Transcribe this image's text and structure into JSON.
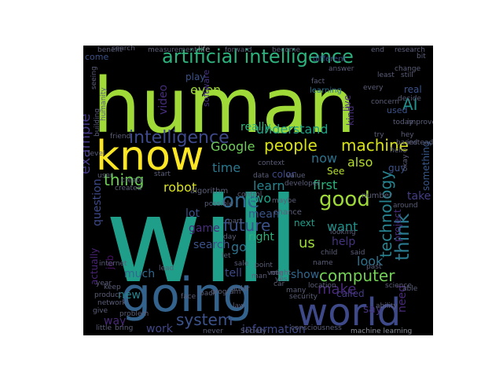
{
  "wordcloud": {
    "background": "#000000",
    "colormap": "viridis",
    "words": [
      {
        "text": "will",
        "color": "#1f9e89"
      },
      {
        "text": "human",
        "color": "#a0da39"
      },
      {
        "text": "going",
        "color": "#33638d"
      },
      {
        "text": "world",
        "color": "#3e4989"
      },
      {
        "text": "know",
        "color": "#fde725"
      },
      {
        "text": "artificial intelligence",
        "color": "#2db27d"
      },
      {
        "text": "intelligence",
        "color": "#3e4989"
      },
      {
        "text": "people",
        "color": "#d8e219"
      },
      {
        "text": "machine",
        "color": "#d8e219"
      },
      {
        "text": "one",
        "color": "#31688e"
      },
      {
        "text": "good",
        "color": "#a0da39"
      },
      {
        "text": "computer",
        "color": "#73d056"
      },
      {
        "text": "think",
        "color": "#2a788e"
      },
      {
        "text": "technology",
        "color": "#26828e"
      },
      {
        "text": "future",
        "color": "#3b528b"
      },
      {
        "text": "system",
        "color": "#3b528b"
      },
      {
        "text": "Google",
        "color": "#6ece58"
      },
      {
        "text": "thing",
        "color": "#6ece58"
      },
      {
        "text": "time",
        "color": "#2a788e"
      },
      {
        "text": "really",
        "color": "#35b779"
      },
      {
        "text": "understand",
        "color": "#1fa187"
      },
      {
        "text": "now",
        "color": "#2c728e"
      },
      {
        "text": "also",
        "color": "#b5de2b"
      },
      {
        "text": "robot",
        "color": "#d8e219"
      },
      {
        "text": "example",
        "color": "#443a83"
      },
      {
        "text": "video",
        "color": "#472d7b"
      },
      {
        "text": "AI",
        "color": "#21918c"
      },
      {
        "text": "even",
        "color": "#a0da39"
      },
      {
        "text": "make",
        "color": "#482878"
      },
      {
        "text": "learn",
        "color": "#26828e"
      },
      {
        "text": "two",
        "color": "#1fa187"
      },
      {
        "text": "first",
        "color": "#2db27d"
      },
      {
        "text": "look",
        "color": "#2c728e"
      },
      {
        "text": "want",
        "color": "#21918c"
      },
      {
        "text": "us",
        "color": "#a0da39"
      },
      {
        "text": "go",
        "color": "#2c728e"
      },
      {
        "text": "right",
        "color": "#2db27d"
      },
      {
        "text": "mean",
        "color": "#39568c"
      },
      {
        "text": "lot",
        "color": "#3b528b"
      },
      {
        "text": "game",
        "color": "#472d7b"
      },
      {
        "text": "search",
        "color": "#3b528b"
      },
      {
        "text": "help",
        "color": "#46337f"
      },
      {
        "text": "tell",
        "color": "#3e4989"
      },
      {
        "text": "show",
        "color": "#31688e"
      },
      {
        "text": "much",
        "color": "#31688e"
      },
      {
        "text": "new",
        "color": "#25848e"
      },
      {
        "text": "way",
        "color": "#482878"
      },
      {
        "text": "work",
        "color": "#404688"
      },
      {
        "text": "information",
        "color": "#3e4989"
      },
      {
        "text": "say",
        "color": "#46337f"
      },
      {
        "text": "called",
        "color": "#443a83"
      },
      {
        "text": "need",
        "color": "#482878"
      },
      {
        "text": "take",
        "color": "#433e85"
      },
      {
        "text": "something",
        "color": "#38588c"
      },
      {
        "text": "guy",
        "color": "#3b528b"
      },
      {
        "text": "project",
        "color": "#472d7b"
      },
      {
        "text": "question",
        "color": "#3e4989"
      },
      {
        "text": "actually",
        "color": "#482475"
      },
      {
        "text": "job",
        "color": "#471063"
      },
      {
        "text": "color",
        "color": "#3e4989"
      },
      {
        "text": "See",
        "color": "#b5de2b"
      },
      {
        "text": "next",
        "color": "#1f9e89"
      },
      {
        "text": "software",
        "color": "#46337f"
      },
      {
        "text": "learning",
        "color": "#2c728e"
      },
      {
        "text": "kind",
        "color": "#472d7b"
      },
      {
        "text": "live",
        "color": "#472d7b"
      },
      {
        "text": "real",
        "color": "#3b528b"
      },
      {
        "text": "used",
        "color": "#3b528b"
      },
      {
        "text": "come",
        "color": "#3b528b"
      },
      {
        "text": "play",
        "color": "#3b528b"
      },
      {
        "text": "different",
        "color": "#3b528b"
      },
      {
        "text": "benefit",
        "color": "#5b5f7a"
      },
      {
        "text": "measurement",
        "color": "#5b5f7a"
      },
      {
        "text": "life",
        "color": "#8a8f9a"
      },
      {
        "text": "forward",
        "color": "#5b5f7a"
      },
      {
        "text": "become",
        "color": "#5b5f7a"
      },
      {
        "text": "end",
        "color": "#5b5f7a"
      },
      {
        "text": "research",
        "color": "#5b5f7a"
      },
      {
        "text": "every",
        "color": "#5b5f7a"
      },
      {
        "text": "change",
        "color": "#5b5f7a"
      },
      {
        "text": "today",
        "color": "#5b5f7a"
      },
      {
        "text": "improve",
        "color": "#5b5f7a"
      },
      {
        "text": "hey",
        "color": "#5b5f7a"
      },
      {
        "text": "based",
        "color": "#5b5f7a"
      },
      {
        "text": "hello",
        "color": "#5b5f7a"
      },
      {
        "text": "okay",
        "color": "#5b5f7a"
      },
      {
        "text": "created",
        "color": "#5b5f7a"
      },
      {
        "text": "around",
        "color": "#5b5f7a"
      },
      {
        "text": "level",
        "color": "#5b5f7a"
      },
      {
        "text": "friend",
        "color": "#5b5f7a"
      },
      {
        "text": "user",
        "color": "#5b5f7a"
      },
      {
        "text": "algorithm",
        "color": "#5b5f7a"
      },
      {
        "text": "possible",
        "color": "#5b5f7a"
      },
      {
        "text": "create",
        "color": "#5b5f7a"
      },
      {
        "text": "number",
        "color": "#5b5f7a"
      },
      {
        "text": "chance",
        "color": "#5b5f7a"
      },
      {
        "text": "maybe",
        "color": "#5b5f7a"
      },
      {
        "text": "part",
        "color": "#5b5f7a"
      },
      {
        "text": "day",
        "color": "#5b5f7a"
      },
      {
        "text": "looking",
        "color": "#5b5f7a"
      },
      {
        "text": "point",
        "color": "#5b5f7a"
      },
      {
        "text": "name",
        "color": "#5b5f7a"
      },
      {
        "text": "said",
        "color": "#5b5f7a"
      },
      {
        "text": "past",
        "color": "#5b5f7a"
      },
      {
        "text": "science",
        "color": "#5b5f7a"
      },
      {
        "text": "able",
        "color": "#5b5f7a"
      },
      {
        "text": "ability",
        "color": "#5b5f7a"
      },
      {
        "text": "year",
        "color": "#5b5f7a"
      },
      {
        "text": "program",
        "color": "#5b5f7a"
      },
      {
        "text": "location",
        "color": "#5b5f7a"
      },
      {
        "text": "security",
        "color": "#5b5f7a"
      },
      {
        "text": "many",
        "color": "#5b5f7a"
      },
      {
        "text": "might",
        "color": "#5b5f7a"
      },
      {
        "text": "internet",
        "color": "#5b5f7a"
      },
      {
        "text": "network",
        "color": "#5b5f7a"
      },
      {
        "text": "give",
        "color": "#5b5f7a"
      },
      {
        "text": "problem",
        "color": "#5b5f7a"
      },
      {
        "text": "back",
        "color": "#5b5f7a"
      },
      {
        "text": "law",
        "color": "#5b5f7a"
      },
      {
        "text": "little",
        "color": "#5b5f7a"
      },
      {
        "text": "bring",
        "color": "#5b5f7a"
      },
      {
        "text": "never",
        "color": "#5b5f7a"
      },
      {
        "text": "Society",
        "color": "#5b5f7a"
      },
      {
        "text": "consciousness",
        "color": "#5b5f7a"
      },
      {
        "text": "machine learning",
        "color": "#8a8f9a"
      },
      {
        "text": "order",
        "color": "#5b5f7a"
      },
      {
        "text": "data",
        "color": "#5b5f7a"
      },
      {
        "text": "concern",
        "color": "#5b5f7a"
      },
      {
        "text": "humanity",
        "color": "#5b5f7a"
      },
      {
        "text": "building",
        "color": "#5b5f7a"
      },
      {
        "text": "instead",
        "color": "#5b5f7a"
      },
      {
        "text": "seeing",
        "color": "#5b5f7a"
      },
      {
        "text": "decide",
        "color": "#5b5f7a"
      },
      {
        "text": "still",
        "color": "#5b5f7a"
      },
      {
        "text": "bit",
        "color": "#5b5f7a"
      },
      {
        "text": "answer",
        "color": "#5b5f7a"
      },
      {
        "text": "least",
        "color": "#5b5f7a"
      },
      {
        "text": "developer",
        "color": "#5b5f7a"
      },
      {
        "text": "control",
        "color": "#5b5f7a"
      },
      {
        "text": "try",
        "color": "#5b5f7a"
      },
      {
        "text": "context",
        "color": "#5b5f7a"
      },
      {
        "text": "start",
        "color": "#5b5f7a"
      },
      {
        "text": "child",
        "color": "#5b5f7a"
      },
      {
        "text": "value",
        "color": "#5b5f7a"
      },
      {
        "text": "vote",
        "color": "#5b5f7a"
      },
      {
        "text": "sale",
        "color": "#5b5f7a"
      },
      {
        "text": "keep",
        "color": "#5b5f7a"
      },
      {
        "text": "product",
        "color": "#5b5f7a"
      },
      {
        "text": "face",
        "color": "#5b5f7a"
      },
      {
        "text": "search",
        "color": "#5b5f7a"
      },
      {
        "text": "fact",
        "color": "#5b5f7a"
      },
      {
        "text": "man",
        "color": "#5b5f7a"
      },
      {
        "text": "yes",
        "color": "#5b5f7a"
      },
      {
        "text": "lead",
        "color": "#5b5f7a"
      },
      {
        "text": "let",
        "color": "#5b5f7a"
      },
      {
        "text": "car",
        "color": "#5b5f7a"
      }
    ]
  }
}
